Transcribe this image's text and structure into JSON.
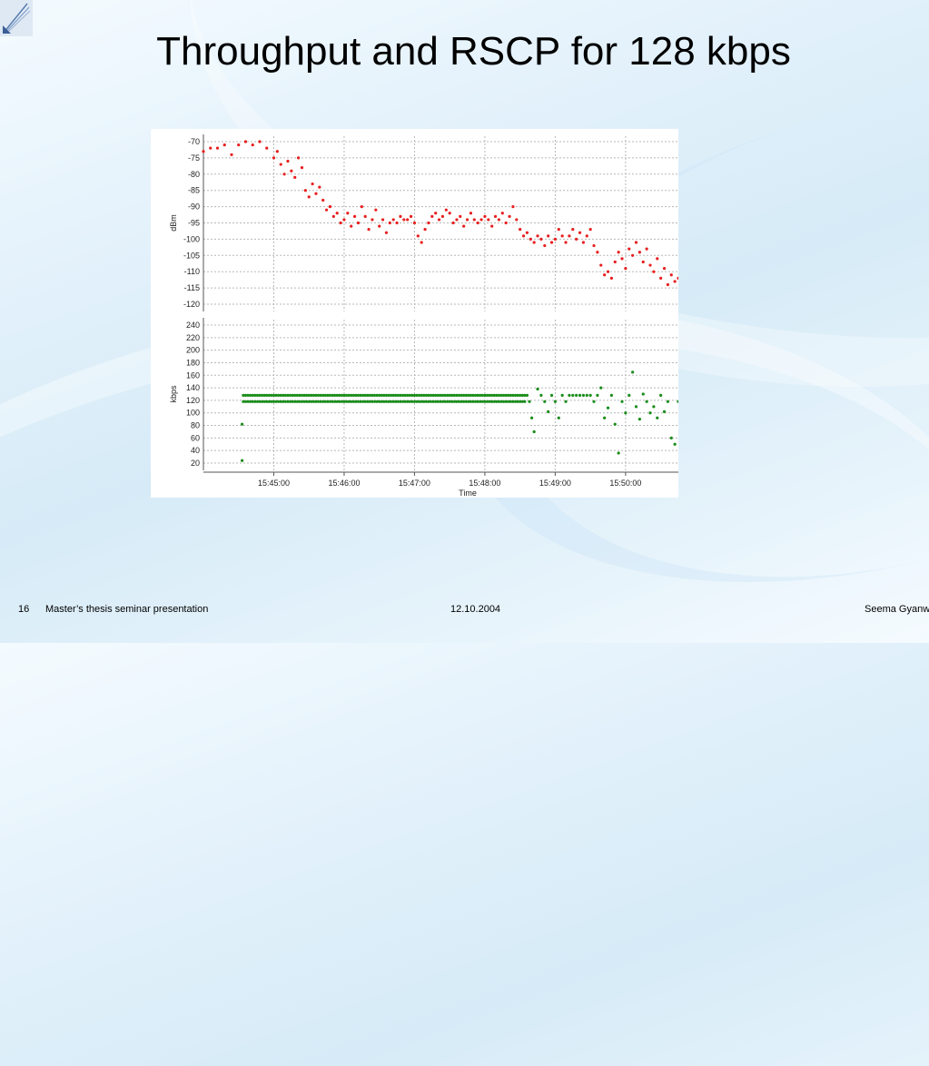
{
  "slide": {
    "title": "Throughput and RSCP for 128 kbps",
    "footer_number": "16",
    "footer_left": "Master’s thesis seminar presentation",
    "footer_date": "12.10.2004",
    "footer_right": "Seema Gyanw"
  },
  "colors": {
    "rscp": "#e81e1e",
    "throughput": "#1a8c1a",
    "grid": "#b8b8b8"
  },
  "chart_data": [
    {
      "type": "scatter",
      "title": "",
      "ylabel": "dBm",
      "xlabel": "",
      "xlim": [
        "15:44:00",
        "15:50:45"
      ],
      "ylim": [
        -123,
        -70
      ],
      "yticks": [
        -70,
        -75,
        -80,
        -85,
        -90,
        -95,
        -100,
        -105,
        -110,
        -115,
        -120
      ],
      "grid": true,
      "series": [
        {
          "color": "#e81e1e",
          "points": [
            [
              "15:44:00",
              -73
            ],
            [
              "15:44:06",
              -72
            ],
            [
              "15:44:12",
              -72
            ],
            [
              "15:44:18",
              -71
            ],
            [
              "15:44:24",
              -74
            ],
            [
              "15:44:30",
              -71
            ],
            [
              "15:44:36",
              -70
            ],
            [
              "15:44:42",
              -71
            ],
            [
              "15:44:48",
              -70
            ],
            [
              "15:44:54",
              -72
            ],
            [
              "15:45:00",
              -75
            ],
            [
              "15:45:03",
              -73
            ],
            [
              "15:45:06",
              -77
            ],
            [
              "15:45:09",
              -80
            ],
            [
              "15:45:12",
              -76
            ],
            [
              "15:45:15",
              -79
            ],
            [
              "15:45:18",
              -81
            ],
            [
              "15:45:21",
              -75
            ],
            [
              "15:45:24",
              -78
            ],
            [
              "15:45:27",
              -85
            ],
            [
              "15:45:30",
              -87
            ],
            [
              "15:45:33",
              -83
            ],
            [
              "15:45:36",
              -86
            ],
            [
              "15:45:39",
              -84
            ],
            [
              "15:45:42",
              -88
            ],
            [
              "15:45:45",
              -91
            ],
            [
              "15:45:48",
              -90
            ],
            [
              "15:45:51",
              -93
            ],
            [
              "15:45:54",
              -92
            ],
            [
              "15:45:57",
              -95
            ],
            [
              "15:46:00",
              -94
            ],
            [
              "15:46:03",
              -92
            ],
            [
              "15:46:06",
              -96
            ],
            [
              "15:46:09",
              -93
            ],
            [
              "15:46:12",
              -95
            ],
            [
              "15:46:15",
              -90
            ],
            [
              "15:46:18",
              -93
            ],
            [
              "15:46:21",
              -97
            ],
            [
              "15:46:24",
              -94
            ],
            [
              "15:46:27",
              -91
            ],
            [
              "15:46:30",
              -96
            ],
            [
              "15:46:33",
              -94
            ],
            [
              "15:46:36",
              -98
            ],
            [
              "15:46:39",
              -95
            ],
            [
              "15:46:42",
              -94
            ],
            [
              "15:46:45",
              -95
            ],
            [
              "15:46:48",
              -93
            ],
            [
              "15:46:51",
              -94
            ],
            [
              "15:46:54",
              -94
            ],
            [
              "15:46:57",
              -93
            ],
            [
              "15:47:00",
              -95
            ],
            [
              "15:47:03",
              -99
            ],
            [
              "15:47:06",
              -101
            ],
            [
              "15:47:09",
              -97
            ],
            [
              "15:47:12",
              -95
            ],
            [
              "15:47:15",
              -93
            ],
            [
              "15:47:18",
              -92
            ],
            [
              "15:47:21",
              -94
            ],
            [
              "15:47:24",
              -93
            ],
            [
              "15:47:27",
              -91
            ],
            [
              "15:47:30",
              -92
            ],
            [
              "15:47:33",
              -95
            ],
            [
              "15:47:36",
              -94
            ],
            [
              "15:47:39",
              -93
            ],
            [
              "15:47:42",
              -96
            ],
            [
              "15:47:45",
              -94
            ],
            [
              "15:47:48",
              -92
            ],
            [
              "15:47:51",
              -94
            ],
            [
              "15:47:54",
              -95
            ],
            [
              "15:47:57",
              -94
            ],
            [
              "15:48:00",
              -93
            ],
            [
              "15:48:03",
              -94
            ],
            [
              "15:48:06",
              -96
            ],
            [
              "15:48:09",
              -93
            ],
            [
              "15:48:12",
              -94
            ],
            [
              "15:48:15",
              -92
            ],
            [
              "15:48:18",
              -95
            ],
            [
              "15:48:21",
              -93
            ],
            [
              "15:48:24",
              -90
            ],
            [
              "15:48:27",
              -94
            ],
            [
              "15:48:30",
              -97
            ],
            [
              "15:48:33",
              -99
            ],
            [
              "15:48:36",
              -98
            ],
            [
              "15:48:39",
              -100
            ],
            [
              "15:48:42",
              -101
            ],
            [
              "15:48:45",
              -99
            ],
            [
              "15:48:48",
              -100
            ],
            [
              "15:48:51",
              -102
            ],
            [
              "15:48:54",
              -99
            ],
            [
              "15:48:57",
              -101
            ],
            [
              "15:49:00",
              -100
            ],
            [
              "15:49:03",
              -97
            ],
            [
              "15:49:06",
              -99
            ],
            [
              "15:49:09",
              -101
            ],
            [
              "15:49:12",
              -99
            ],
            [
              "15:49:15",
              -97
            ],
            [
              "15:49:18",
              -100
            ],
            [
              "15:49:21",
              -98
            ],
            [
              "15:49:24",
              -101
            ],
            [
              "15:49:27",
              -99
            ],
            [
              "15:49:30",
              -97
            ],
            [
              "15:49:33",
              -102
            ],
            [
              "15:49:36",
              -104
            ],
            [
              "15:49:39",
              -108
            ],
            [
              "15:49:42",
              -111
            ],
            [
              "15:49:45",
              -110
            ],
            [
              "15:49:48",
              -112
            ],
            [
              "15:49:51",
              -107
            ],
            [
              "15:49:54",
              -104
            ],
            [
              "15:49:57",
              -106
            ],
            [
              "15:50:00",
              -109
            ],
            [
              "15:50:03",
              -103
            ],
            [
              "15:50:06",
              -105
            ],
            [
              "15:50:09",
              -101
            ],
            [
              "15:50:12",
              -104
            ],
            [
              "15:50:15",
              -107
            ],
            [
              "15:50:18",
              -103
            ],
            [
              "15:50:21",
              -108
            ],
            [
              "15:50:24",
              -110
            ],
            [
              "15:50:27",
              -106
            ],
            [
              "15:50:30",
              -112
            ],
            [
              "15:50:33",
              -109
            ],
            [
              "15:50:36",
              -114
            ],
            [
              "15:50:39",
              -111
            ],
            [
              "15:50:42",
              -113
            ],
            [
              "15:50:45",
              -112
            ]
          ]
        }
      ]
    },
    {
      "type": "scatter",
      "title": "",
      "ylabel": "kbps",
      "xlabel": "Time",
      "xlim": [
        "15:44:00",
        "15:50:45"
      ],
      "ylim": [
        10,
        250
      ],
      "yticks": [
        20,
        40,
        60,
        80,
        100,
        120,
        140,
        160,
        180,
        200,
        220,
        240
      ],
      "xticks": [
        "15:45:00",
        "15:46:00",
        "15:47:00",
        "15:48:00",
        "15:49:00",
        "15:50:00"
      ],
      "grid": true,
      "series": [
        {
          "color": "#1a8c1a",
          "points": [
            [
              "15:44:33",
              24
            ],
            [
              "15:44:33",
              82
            ],
            [
              "15:44:34",
              118
            ],
            [
              "15:44:34",
              128
            ],
            [
              "15:48:36",
              128
            ],
            [
              "15:48:38",
              118
            ],
            [
              "15:48:40",
              92
            ],
            [
              "15:48:42",
              70
            ],
            [
              "15:48:45",
              138
            ],
            [
              "15:48:48",
              128
            ],
            [
              "15:48:51",
              118
            ],
            [
              "15:48:54",
              102
            ],
            [
              "15:48:57",
              128
            ],
            [
              "15:49:00",
              118
            ],
            [
              "15:49:03",
              92
            ],
            [
              "15:49:06",
              128
            ],
            [
              "15:49:09",
              118
            ],
            [
              "15:49:12",
              128
            ],
            [
              "15:49:15",
              128
            ],
            [
              "15:49:18",
              128
            ],
            [
              "15:49:21",
              128
            ],
            [
              "15:49:24",
              128
            ],
            [
              "15:49:27",
              128
            ],
            [
              "15:49:30",
              128
            ],
            [
              "15:49:33",
              118
            ],
            [
              "15:49:36",
              128
            ],
            [
              "15:49:39",
              140
            ],
            [
              "15:49:42",
              92
            ],
            [
              "15:49:45",
              108
            ],
            [
              "15:49:48",
              128
            ],
            [
              "15:49:51",
              82
            ],
            [
              "15:49:54",
              36
            ],
            [
              "15:49:57",
              118
            ],
            [
              "15:50:00",
              100
            ],
            [
              "15:50:03",
              128
            ],
            [
              "15:50:06",
              165
            ],
            [
              "15:50:09",
              110
            ],
            [
              "15:50:12",
              90
            ],
            [
              "15:50:15",
              130
            ],
            [
              "15:50:18",
              118
            ],
            [
              "15:50:21",
              100
            ],
            [
              "15:50:24",
              110
            ],
            [
              "15:50:27",
              92
            ],
            [
              "15:50:30",
              128
            ],
            [
              "15:50:33",
              102
            ],
            [
              "15:50:36",
              118
            ],
            [
              "15:50:39",
              60
            ],
            [
              "15:50:42",
              50
            ],
            [
              "15:50:45",
              118
            ]
          ],
          "bands": [
            {
              "from": "15:44:36",
              "to": "15:48:34",
              "step_seconds": 2,
              "values": [
                118,
                128
              ]
            }
          ]
        }
      ]
    }
  ]
}
